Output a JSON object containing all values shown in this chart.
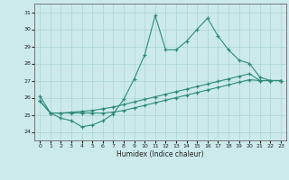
{
  "x": [
    0,
    1,
    2,
    3,
    4,
    5,
    6,
    7,
    8,
    9,
    10,
    11,
    12,
    13,
    14,
    15,
    16,
    17,
    18,
    19,
    20,
    21,
    22,
    23
  ],
  "line1": [
    26.1,
    25.1,
    24.8,
    24.65,
    24.3,
    24.4,
    24.65,
    25.05,
    25.9,
    27.1,
    28.5,
    30.8,
    28.8,
    28.8,
    29.3,
    30.0,
    30.65,
    29.6,
    28.8,
    28.2,
    28.0,
    27.2,
    27.0,
    27.0
  ],
  "line2": [
    25.8,
    25.1,
    25.1,
    25.15,
    25.2,
    25.25,
    25.35,
    25.45,
    25.6,
    25.75,
    25.9,
    26.05,
    26.2,
    26.35,
    26.5,
    26.65,
    26.8,
    26.95,
    27.1,
    27.25,
    27.4,
    27.0,
    27.0,
    27.0
  ],
  "line3": [
    25.8,
    25.1,
    25.1,
    25.1,
    25.1,
    25.1,
    25.1,
    25.15,
    25.25,
    25.4,
    25.55,
    25.7,
    25.85,
    26.0,
    26.15,
    26.3,
    26.45,
    26.6,
    26.75,
    26.9,
    27.05,
    27.0,
    27.0,
    27.0
  ],
  "line_color": "#2e8b7a",
  "bg_color": "#cceaea",
  "grid_color": "#aad4d4",
  "xlabel": "Humidex (Indice chaleur)",
  "ylim": [
    23.5,
    31.5
  ],
  "xlim": [
    -0.5,
    23.5
  ],
  "yticks": [
    24,
    25,
    26,
    27,
    28,
    29,
    30,
    31
  ],
  "xticks": [
    0,
    1,
    2,
    3,
    4,
    5,
    6,
    7,
    8,
    9,
    10,
    11,
    12,
    13,
    14,
    15,
    16,
    17,
    18,
    19,
    20,
    21,
    22,
    23
  ]
}
